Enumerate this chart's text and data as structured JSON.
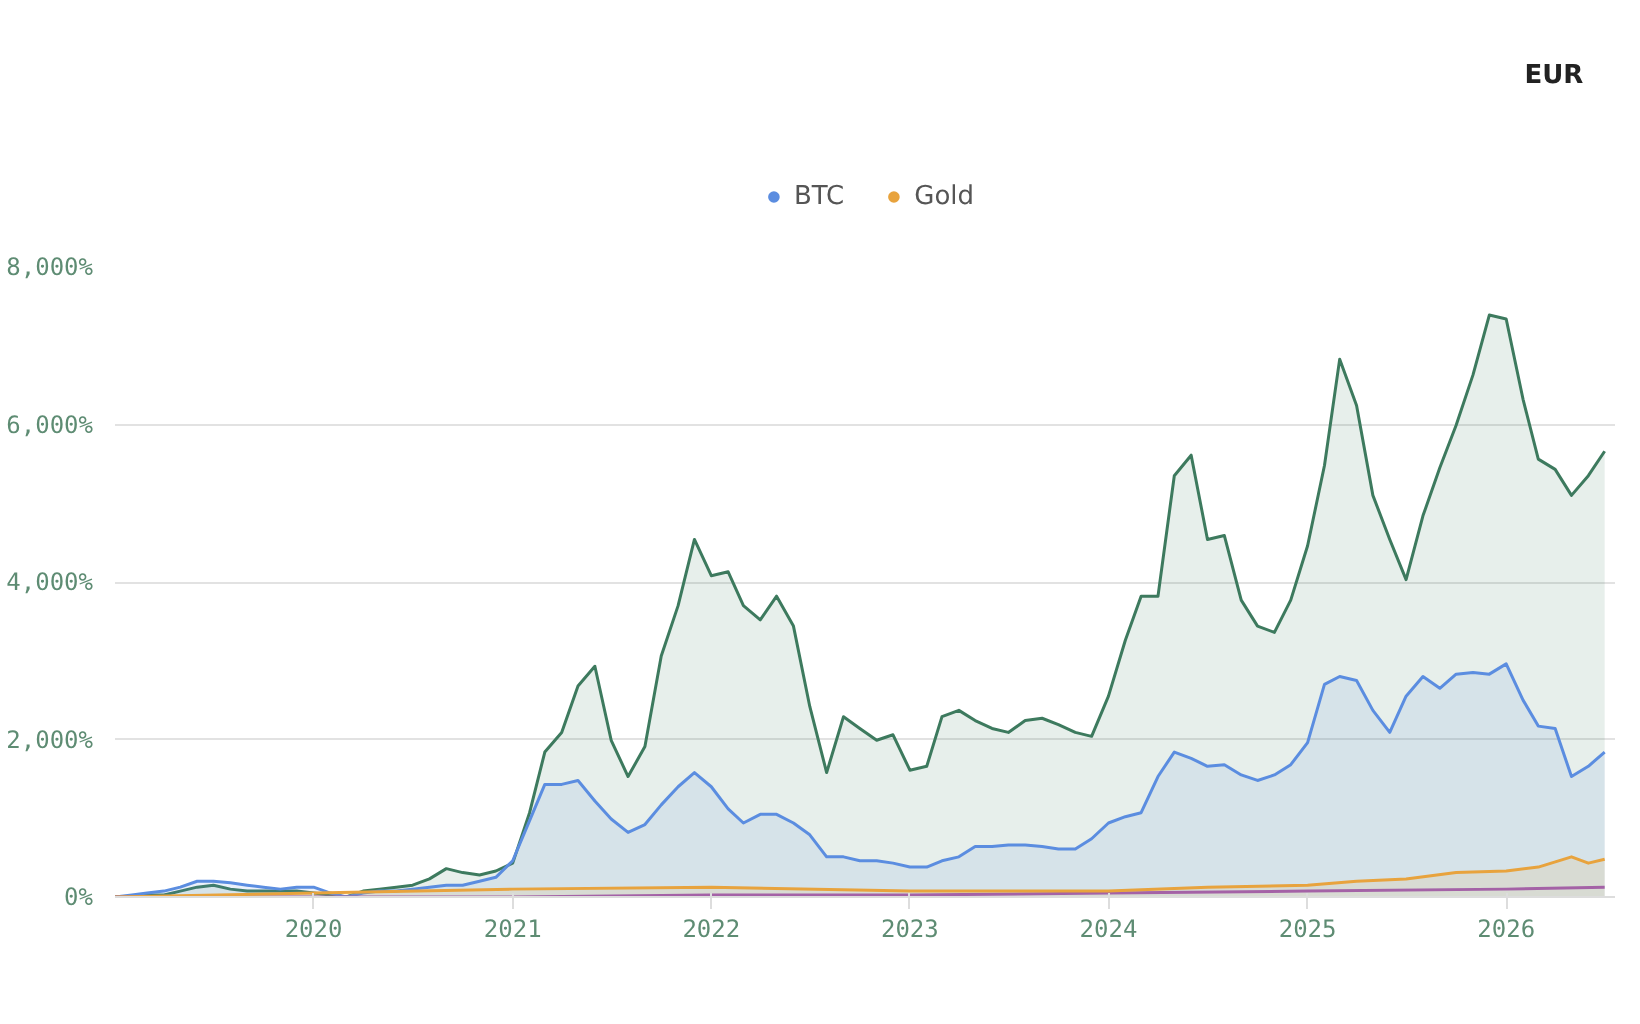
{
  "chart_data": {
    "type": "area",
    "annotations": [
      "EUR"
    ],
    "x": [
      "2019-01",
      "2019-02",
      "2019-03",
      "2019-04",
      "2019-05",
      "2019-06",
      "2019-07",
      "2019-08",
      "2019-09",
      "2019-10",
      "2019-11",
      "2019-12",
      "2020-01",
      "2020-02",
      "2020-03",
      "2020-04",
      "2020-05",
      "2020-06",
      "2020-07",
      "2020-08",
      "2020-09",
      "2020-10",
      "2020-11",
      "2020-12",
      "2021-01",
      "2021-02",
      "2021-03",
      "2021-04",
      "2021-05",
      "2021-06",
      "2021-07",
      "2021-08",
      "2021-09",
      "2021-10",
      "2021-11",
      "2021-12",
      "2022-01",
      "2022-02",
      "2022-03",
      "2022-04",
      "2022-05",
      "2022-06",
      "2022-07",
      "2022-08",
      "2022-09",
      "2022-10",
      "2022-11",
      "2022-12",
      "2023-01",
      "2023-02",
      "2023-03",
      "2023-04",
      "2023-05",
      "2023-06",
      "2023-07",
      "2023-08",
      "2023-09",
      "2023-10",
      "2023-11",
      "2023-12",
      "2024-01",
      "2024-02",
      "2024-03",
      "2024-04",
      "2024-05",
      "2024-06",
      "2024-07",
      "2024-08",
      "2024-09",
      "2024-10",
      "2024-11",
      "2024-12",
      "2025-01",
      "2025-02",
      "2025-03",
      "2025-04",
      "2025-05",
      "2025-06",
      "2025-07",
      "2025-08",
      "2025-09",
      "2025-10",
      "2025-11",
      "2025-12",
      "2026-01",
      "2026-02",
      "2026-03",
      "2026-04",
      "2026-05",
      "2026-06",
      "2026-07"
    ],
    "series": [
      {
        "color": "#3d7a5e",
        "values": [
          0,
          0,
          25,
          25,
          75,
          125,
          150,
          100,
          75,
          75,
          75,
          75,
          50,
          25,
          0,
          75,
          100,
          125,
          150,
          230,
          360,
          310,
          280,
          330,
          430,
          1070,
          1840,
          2090,
          2680,
          2930,
          1990,
          1530,
          1910,
          3060,
          3700,
          4540,
          4080,
          4130,
          3700,
          3520,
          3820,
          3440,
          2420,
          1580,
          2290,
          2140,
          1990,
          2060,
          1610,
          1660,
          2290,
          2370,
          2240,
          2140,
          2090,
          2240,
          2270,
          2190,
          2090,
          2040,
          2550,
          3260,
          3820,
          3820,
          5350,
          5610,
          4540,
          4590,
          3770,
          3440,
          3360,
          3770,
          4460,
          5480,
          6830,
          6240,
          5100,
          4540,
          4030,
          4840,
          5450,
          5990,
          6630,
          7390,
          7340,
          6320,
          5560,
          5430,
          5100,
          5350,
          5660
        ]
      },
      {
        "name": "BTC",
        "color": "#5b8de0",
        "values": [
          0,
          25,
          50,
          75,
          125,
          200,
          200,
          180,
          150,
          125,
          100,
          125,
          125,
          50,
          0,
          50,
          75,
          75,
          100,
          125,
          150,
          150,
          200,
          250,
          460,
          970,
          1430,
          1430,
          1480,
          1220,
          990,
          820,
          920,
          1170,
          1400,
          1580,
          1400,
          1120,
          940,
          1050,
          1050,
          940,
          790,
          510,
          510,
          460,
          460,
          430,
          380,
          380,
          460,
          510,
          640,
          640,
          660,
          660,
          640,
          610,
          610,
          740,
          940,
          1020,
          1070,
          1530,
          1840,
          1760,
          1660,
          1680,
          1550,
          1480,
          1550,
          1680,
          1960,
          2700,
          2800,
          2750,
          2370,
          2090,
          2550,
          2800,
          2650,
          2830,
          2850,
          2830,
          2960,
          2500,
          2170,
          2140,
          1530,
          1660,
          1840
        ]
      },
      {
        "type": "line",
        "color": "#9b59b6",
        "x": [
          "2019-01",
          "2020-01",
          "2020-03",
          "2021-01",
          "2022-01",
          "2023-01",
          "2024-01",
          "2025-01",
          "2026-01",
          "2026-07"
        ],
        "values": [
          0,
          0,
          0,
          0,
          25,
          25,
          50,
          75,
          100,
          125
        ]
      },
      {
        "name": "Gold",
        "color": "#e8a33d",
        "x": [
          "2019-01",
          "2020-01",
          "2021-01",
          "2022-01",
          "2023-01",
          "2024-01",
          "2024-07",
          "2025-01",
          "2025-04",
          "2025-07",
          "2025-10",
          "2026-01",
          "2026-03",
          "2026-05",
          "2026-06",
          "2026-07"
        ],
        "values": [
          0,
          50,
          100,
          125,
          75,
          75,
          125,
          150,
          200,
          230,
          310,
          330,
          380,
          510,
          430,
          480
        ]
      }
    ],
    "xlim": [
      "2019-01-01",
      "2026-07-20"
    ],
    "xticks": [
      {
        "value": "2020-01-01",
        "label": "2020"
      },
      {
        "value": "2021-01-01",
        "label": "2021"
      },
      {
        "value": "2022-01-01",
        "label": "2022"
      },
      {
        "value": "2023-01-01",
        "label": "2023"
      },
      {
        "value": "2024-01-01",
        "label": "2024"
      },
      {
        "value": "2025-01-01",
        "label": "2025"
      },
      {
        "value": "2026-01-01",
        "label": "2026"
      }
    ],
    "ylim": [
      0,
      8000
    ],
    "yticks": [
      {
        "value": 0,
        "label": "0%"
      },
      {
        "value": 2000,
        "label": "2,000%"
      },
      {
        "value": 4000,
        "label": "4,000%"
      },
      {
        "value": 6000,
        "label": "6,000%"
      },
      {
        "value": 8000,
        "label": "8,000%"
      }
    ],
    "grid": "y",
    "legend": "top",
    "marker": "none"
  }
}
